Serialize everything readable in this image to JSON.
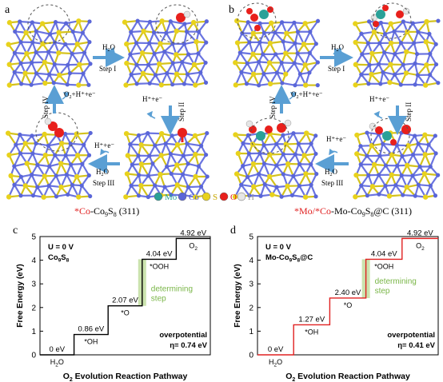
{
  "top": {
    "panel_a": {
      "letter": "a",
      "steps": [
        "Step I",
        "Step II",
        "Step III",
        "Step IV"
      ],
      "h2o_1": "H2O",
      "o2_label": "O2+H⁺+e⁻",
      "hplus_1": "H⁺+e⁻",
      "hplus_2": "H⁺+e⁻",
      "h2o_2": "H2O",
      "caption_star": "*Co",
      "caption_rest": "-Co9S8 (311)"
    },
    "panel_b": {
      "letter": "b",
      "steps": [
        "Step I",
        "Step II",
        "Step III",
        "Step IV"
      ],
      "h2o_1": "H2O",
      "o2_label": "O2+H⁺+e⁻",
      "hplus_1": "H⁺+e⁻",
      "hplus_2": "H⁺+e⁻",
      "h2o_2": "H2O",
      "caption_star": "*Mo/*Co",
      "caption_rest": "-Mo-Co9S8@C (311)"
    },
    "legend": [
      {
        "label": "Mo",
        "color": "#2aa198"
      },
      {
        "label": "Co",
        "color": "#5a66d8"
      },
      {
        "label": "S",
        "color": "#e8d21c"
      },
      {
        "label": "O",
        "color": "#e8201c"
      },
      {
        "label": "H",
        "color": "#e6e6e6"
      }
    ]
  },
  "chart_data": [
    {
      "panel": "c",
      "type": "line",
      "style": "step",
      "color": "#000000",
      "ylabel": "Free Energy (eV)",
      "xlabel": "O2 Evolution Reaction Pathway",
      "ylim": [
        0,
        5
      ],
      "yticks": [
        0,
        1,
        2,
        3,
        4,
        5
      ],
      "annotation_top": "U = 0 V",
      "material": "Co9S8",
      "steps": [
        {
          "species": "H2O",
          "value": 0,
          "label": "0 eV"
        },
        {
          "species": "*OH",
          "value": 0.86,
          "label": "0.86 eV"
        },
        {
          "species": "*O",
          "value": 2.07,
          "label": "2.07 eV"
        },
        {
          "species": "*OOH",
          "value": 4.04,
          "label": "4.04 eV"
        },
        {
          "species": "O2",
          "value": 4.92,
          "label": "4.92 eV"
        }
      ],
      "determining_label": [
        "determining",
        "step"
      ],
      "overpotential_label": "overpotential",
      "eta": "η= 0.74 eV"
    },
    {
      "panel": "d",
      "type": "line",
      "style": "step",
      "color": "#e02020",
      "ylabel": "Free Energy (eV)",
      "xlabel": "O2 Evolution Reaction Pathway",
      "ylim": [
        0,
        5
      ],
      "yticks": [
        0,
        1,
        2,
        3,
        4,
        5
      ],
      "annotation_top": "U = 0 V",
      "material": "Mo-Co9S8@C",
      "steps": [
        {
          "species": "H2O",
          "value": 0,
          "label": "0 eV"
        },
        {
          "species": "*OH",
          "value": 1.27,
          "label": "1.27 eV"
        },
        {
          "species": "*O",
          "value": 2.4,
          "label": "2.40 eV"
        },
        {
          "species": "*OOH",
          "value": 4.04,
          "label": "4.04 eV"
        },
        {
          "species": "O2",
          "value": 4.92,
          "label": "4.92 eV"
        }
      ],
      "determining_label": [
        "determining",
        "step"
      ],
      "overpotential_label": "overpotential",
      "eta": "η= 0.41 eV"
    }
  ],
  "colors": {
    "arrow": "#5a9fd4",
    "determining_band": "#c5e0a5",
    "determining_text": "#7ab648",
    "caption_red": "#e02020"
  }
}
